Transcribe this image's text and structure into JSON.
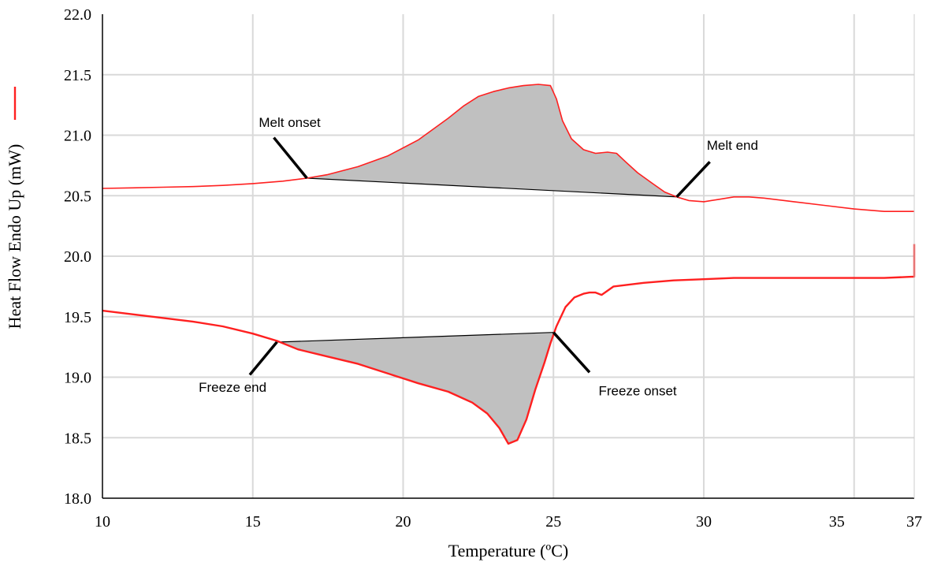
{
  "chart_data": {
    "type": "line",
    "xlabel": "Temperature (ºC)",
    "ylabel": "Heat Flow Endo Up (mW)",
    "xlim": [
      10,
      37
    ],
    "ylim": [
      18.0,
      22.0
    ],
    "x_ticks": [
      10,
      15,
      20,
      25,
      30,
      35,
      37
    ],
    "y_ticks": [
      "18.0",
      "18.5",
      "19.0",
      "19.5",
      "20.0",
      "20.5",
      "21.0",
      "21.5",
      "22.0"
    ],
    "grid": true,
    "legend": "left-vertical",
    "colors": {
      "line": "#ff2020",
      "fill": "#c0c0c0",
      "baseline": "#000000",
      "grid": "#d9d9d9"
    },
    "series": [
      {
        "x": [
          10,
          11,
          12,
          13,
          14,
          15,
          16,
          16.8,
          17.5,
          18.5,
          19.5,
          20.5,
          21.5,
          22,
          22.5,
          23,
          23.5,
          24,
          24.5,
          24.9,
          25.1,
          25.3,
          25.6,
          26,
          26.4,
          26.8,
          27.1,
          27.4,
          27.8,
          28.3,
          28.7,
          29.1,
          29.5,
          30,
          30.5,
          31,
          31.5,
          32,
          33,
          34,
          35,
          36,
          37
        ],
        "y": [
          20.56,
          20.565,
          20.57,
          20.575,
          20.585,
          20.6,
          20.62,
          20.645,
          20.675,
          20.74,
          20.83,
          20.96,
          21.14,
          21.24,
          21.32,
          21.36,
          21.39,
          21.41,
          21.42,
          21.41,
          21.3,
          21.12,
          20.97,
          20.88,
          20.85,
          20.86,
          20.85,
          20.78,
          20.69,
          20.6,
          20.53,
          20.49,
          20.46,
          20.45,
          20.47,
          20.49,
          20.49,
          20.48,
          20.45,
          20.42,
          20.39,
          20.37,
          20.37
        ]
      },
      {
        "x": [
          10,
          11,
          12,
          13,
          14,
          15,
          15.8,
          16.5,
          17.5,
          18.5,
          19.5,
          20.5,
          21.5,
          22.3,
          22.8,
          23.2,
          23.5,
          23.8,
          24.1,
          24.4,
          24.7,
          24.9,
          25.1,
          25.4,
          25.7,
          26,
          26.2,
          26.4,
          26.6,
          27,
          28,
          29,
          30,
          31,
          32,
          33,
          34,
          35,
          36,
          36.9,
          37,
          37
        ],
        "y": [
          19.55,
          19.52,
          19.49,
          19.46,
          19.42,
          19.36,
          19.3,
          19.23,
          19.17,
          19.11,
          19.03,
          18.95,
          18.88,
          18.79,
          18.7,
          18.58,
          18.45,
          18.48,
          18.65,
          18.9,
          19.12,
          19.28,
          19.42,
          19.58,
          19.66,
          19.69,
          19.7,
          19.7,
          19.68,
          19.75,
          19.78,
          19.8,
          19.81,
          19.82,
          19.82,
          19.82,
          19.82,
          19.82,
          19.82,
          19.83,
          19.83,
          20.1
        ]
      }
    ],
    "shaded_regions": [
      {
        "x": [
          16.8,
          17.5,
          18.5,
          19.5,
          20.5,
          21.5,
          22,
          22.5,
          23,
          23.5,
          24,
          24.5,
          24.9,
          25.1,
          25.3,
          25.6,
          26,
          26.4,
          26.8,
          27.1,
          27.4,
          27.8,
          28.3,
          28.7,
          29.1
        ],
        "y_curve": [
          20.645,
          20.675,
          20.74,
          20.83,
          20.96,
          21.14,
          21.24,
          21.32,
          21.36,
          21.39,
          21.41,
          21.42,
          21.41,
          21.3,
          21.12,
          20.97,
          20.88,
          20.85,
          20.86,
          20.85,
          20.78,
          20.69,
          20.6,
          20.53,
          20.49
        ],
        "baseline": [
          [
            16.8,
            20.645
          ],
          [
            29.1,
            20.49
          ]
        ]
      },
      {
        "x": [
          15.8,
          16.5,
          17.5,
          18.5,
          19.5,
          20.5,
          21.5,
          22.3,
          22.8,
          23.2,
          23.5,
          23.8,
          24.1,
          24.4,
          24.7,
          24.9,
          25.0
        ],
        "y_curve": [
          19.3,
          19.23,
          19.17,
          19.11,
          19.03,
          18.95,
          18.88,
          18.79,
          18.7,
          18.58,
          18.45,
          18.48,
          18.65,
          18.9,
          19.12,
          19.28,
          19.35
        ],
        "baseline": [
          [
            15.8,
            19.29
          ],
          [
            25.0,
            19.37
          ]
        ]
      }
    ],
    "annotations": [
      {
        "text": "Melt onset",
        "label_at": [
          15.2,
          21.07
        ],
        "pointer_from": [
          15.7,
          20.98
        ],
        "pointer_to": [
          16.8,
          20.645
        ]
      },
      {
        "text": "Melt end",
        "label_at": [
          30.1,
          20.88
        ],
        "pointer_from": [
          29.1,
          20.49
        ],
        "pointer_to": [
          30.2,
          20.78
        ]
      },
      {
        "text": "Freeze end",
        "label_at": [
          13.2,
          18.88
        ],
        "pointer_from": [
          14.9,
          19.02
        ],
        "pointer_to": [
          15.8,
          19.29
        ]
      },
      {
        "text": "Freeze onset",
        "label_at": [
          26.5,
          18.85
        ],
        "pointer_from": [
          25.0,
          19.37
        ],
        "pointer_to": [
          26.2,
          19.04
        ]
      }
    ]
  }
}
